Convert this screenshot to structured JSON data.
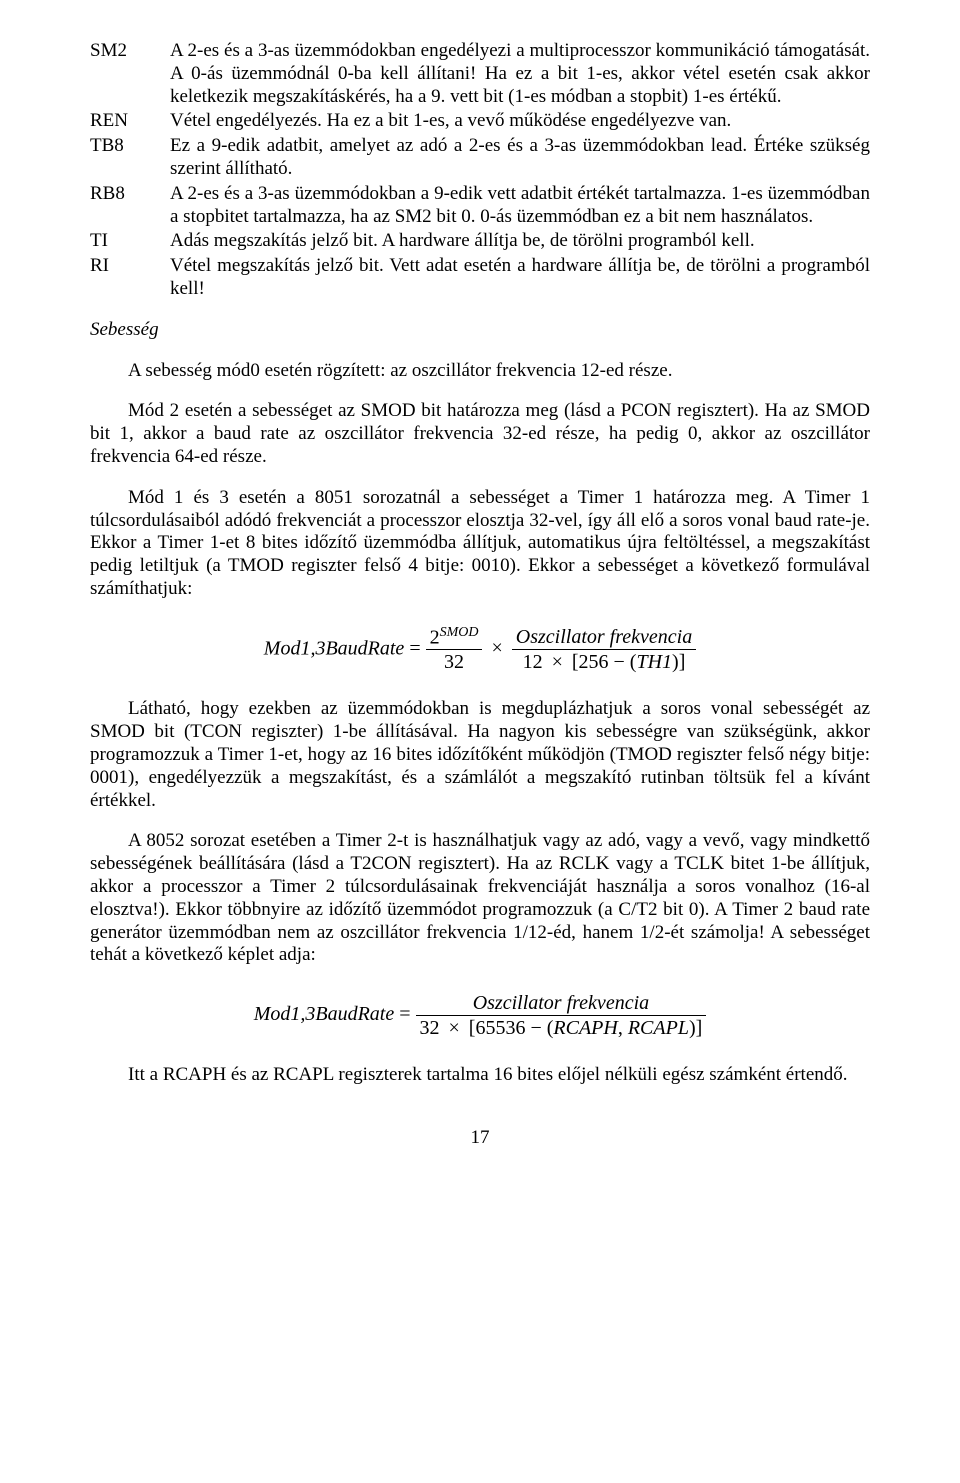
{
  "defs": [
    {
      "label": "SM2",
      "text": "A 2-es és a 3-as üzemmódokban engedélyezi a multiprocesszor kommunikáció támogatását. A 0-ás üzemmódnál 0-ba kell állítani! Ha ez a bit 1-es, akkor vétel esetén csak akkor keletkezik megszakításkérés, ha a 9. vett bit (1-es módban a stopbit) 1-es értékű."
    },
    {
      "label": "REN",
      "text": "Vétel engedélyezés. Ha ez a bit 1-es, a vevő működése engedélyezve van."
    },
    {
      "label": "TB8",
      "text": "Ez a 9-edik adatbit, amelyet az adó a 2-es és a 3-as üzemmódokban lead. Értéke szükség szerint állítható."
    },
    {
      "label": "RB8",
      "text": "A 2-es és a 3-as üzemmódokban a 9-edik vett adatbit értékét tartalmazza. 1-es üzemmódban a stopbitet tartalmazza, ha az SM2 bit 0. 0-ás üzemmódban ez a bit nem használatos."
    },
    {
      "label": "TI",
      "text": "Adás megszakítás jelző bit. A hardware állítja be, de törölni programból kell."
    },
    {
      "label": "RI",
      "text": "Vétel megszakítás jelző bit. Vett adat esetén a hardware állítja be, de törölni a programból kell!"
    }
  ],
  "section": "Sebesség",
  "p1": "A sebesség mód0 esetén rögzített: az oszcillátor frekvencia 12-ed része.",
  "p2": "Mód 2 esetén a sebességet az SMOD bit határozza meg (lásd a PCON regisztert). Ha az SMOD bit 1, akkor a baud rate az oszcillátor frekvencia 32-ed része, ha pedig 0, akkor az oszcillátor frekvencia 64-ed része.",
  "p3": "Mód 1 és 3 esetén a 8051 sorozatnál a sebességet a Timer 1 határozza meg. A Timer 1 túlcsordulásaiból adódó frekvenciát a processzor elosztja 32-vel, így áll elő a soros vonal baud rate-je. Ekkor a Timer 1-et 8 bites időzítő üzemmódba állítjuk, automatikus újra feltöltéssel, a megszakítást pedig letiltjuk (a TMOD regiszter felső 4 bitje: 0010). Ekkor a sebességet a következő formulával számíthatjuk:",
  "formula1": {
    "lhs": "Mod1,3BaudRate",
    "f1_num": "2",
    "f1_sup": "SMOD",
    "f1_den": "32",
    "f2_num": "Oszcillator frekvencia",
    "f2_den_a": "12",
    "f2_den_b": "256",
    "f2_den_c": "TH1"
  },
  "p4": "Látható, hogy ezekben az üzemmódokban is megduplázhatjuk a soros vonal sebességét az SMOD bit (TCON regiszter) 1-be állításával. Ha nagyon kis sebességre van szükségünk, akkor programozzuk a Timer 1-et, hogy az 16 bites időzítőként működjön (TMOD regiszter felső négy bitje: 0001), engedélyezzük a megszakítást, és a számlálót a megszakító rutinban töltsük fel a kívánt értékkel.",
  "p5": "A 8052 sorozat esetében a Timer 2-t is használhatjuk vagy az adó, vagy a vevő, vagy mindkettő sebességének beállítására (lásd a T2CON regisztert). Ha az RCLK vagy a TCLK bitet 1-be állítjuk, akkor a processzor a Timer 2 túlcsordulásainak frekvenciáját használja a soros vonalhoz (16-al elosztva!). Ekkor többnyire az időzítő üzemmódot programozzuk (a C/T2 bit 0). A Timer 2 baud rate generátor üzemmódban nem az oszcillátor frekvencia 1/12-éd, hanem 1/2-ét számolja! A sebességet tehát a következő képlet adja:",
  "formula2": {
    "lhs": "Mod1,3BaudRate",
    "num": "Oszcillator frekvencia",
    "den_a": "32",
    "den_b": "65536",
    "den_c": "RCAPH",
    "den_d": "RCAPL"
  },
  "p6": "Itt a RCAPH és az RCAPL regiszterek tartalma 16 bites előjel nélküli egész számként értendő.",
  "pagenum": "17"
}
